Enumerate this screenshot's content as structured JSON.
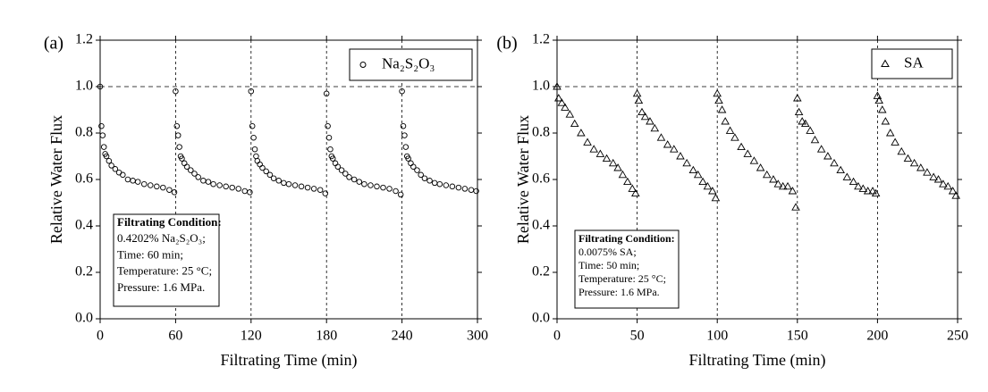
{
  "chart_data": [
    {
      "type": "scatter",
      "panel_label": "(a)",
      "x_label": "Filtrating Time (min)",
      "y_label": "Relative Water Flux",
      "xlim": [
        0,
        300
      ],
      "ylim": [
        0,
        1.2
      ],
      "xticks": [
        0,
        60,
        120,
        180,
        240,
        300
      ],
      "yticks": [
        {
          "value": 0,
          "label": "0.0"
        },
        0.2,
        0.4,
        0.6,
        0.8,
        {
          "value": 1,
          "label": "1.0"
        },
        1.2
      ],
      "vlines": [
        60,
        120,
        180,
        240
      ],
      "hline": 1,
      "legend": "upper right",
      "annotation": [
        "Filtrating Condition:",
        "0.4202% Na₂S₂O₃;",
        "Time: 60 min;",
        "Temperature: 25 °C;",
        "Pressure: 1.6 MPa."
      ],
      "series": [
        {
          "name": "Na₂S₂O₃",
          "color": "#000000",
          "marker": "circle",
          "x": [
            0,
            1,
            2,
            3,
            4,
            5,
            7,
            9,
            12,
            15,
            18,
            22,
            26,
            30,
            35,
            40,
            45,
            50,
            55,
            59,
            60,
            61,
            62,
            63,
            64,
            65,
            67,
            69,
            72,
            75,
            78,
            82,
            86,
            90,
            95,
            100,
            105,
            110,
            115,
            119,
            120,
            121,
            122,
            123,
            124,
            125,
            127,
            129,
            132,
            135,
            138,
            142,
            146,
            150,
            155,
            160,
            165,
            170,
            175,
            179,
            180,
            181,
            182,
            183,
            184,
            185,
            187,
            189,
            192,
            195,
            198,
            202,
            206,
            210,
            215,
            220,
            225,
            230,
            235,
            239,
            240,
            241,
            242,
            243,
            244,
            245,
            247,
            249,
            252,
            255,
            258,
            262,
            266,
            270,
            275,
            280,
            285,
            290,
            295,
            299
          ],
          "values": [
            1.0,
            0.83,
            0.79,
            0.74,
            0.71,
            0.7,
            0.68,
            0.66,
            0.645,
            0.63,
            0.62,
            0.6,
            0.595,
            0.59,
            0.58,
            0.575,
            0.57,
            0.565,
            0.555,
            0.545,
            0.98,
            0.83,
            0.79,
            0.74,
            0.7,
            0.69,
            0.67,
            0.655,
            0.64,
            0.625,
            0.61,
            0.595,
            0.59,
            0.58,
            0.575,
            0.57,
            0.565,
            0.56,
            0.55,
            0.545,
            0.98,
            0.83,
            0.78,
            0.73,
            0.7,
            0.68,
            0.665,
            0.65,
            0.635,
            0.62,
            0.605,
            0.595,
            0.585,
            0.58,
            0.575,
            0.57,
            0.565,
            0.56,
            0.555,
            0.54,
            0.97,
            0.83,
            0.78,
            0.73,
            0.7,
            0.69,
            0.67,
            0.655,
            0.64,
            0.625,
            0.61,
            0.6,
            0.59,
            0.58,
            0.575,
            0.57,
            0.565,
            0.56,
            0.55,
            0.535,
            0.98,
            0.83,
            0.79,
            0.74,
            0.7,
            0.69,
            0.67,
            0.655,
            0.64,
            0.62,
            0.605,
            0.595,
            0.585,
            0.58,
            0.575,
            0.57,
            0.565,
            0.56,
            0.555,
            0.55
          ]
        }
      ]
    },
    {
      "type": "scatter",
      "panel_label": "(b)",
      "x_label": "Filtrating Time (min)",
      "y_label": "Relative Water Flux",
      "xlim": [
        0,
        250
      ],
      "ylim": [
        0,
        1.2
      ],
      "xticks": [
        0,
        50,
        100,
        150,
        200,
        250
      ],
      "yticks": [
        {
          "value": 0,
          "label": "0.0"
        },
        0.2,
        0.4,
        0.6,
        0.8,
        {
          "value": 1,
          "label": "1.0"
        },
        1.2
      ],
      "vlines": [
        50,
        100,
        150,
        200
      ],
      "hline": 1,
      "legend": "upper right",
      "annotation": [
        "Filtrating Condition:",
        "0.0075% SA;",
        "Time: 50 min;",
        "Temperature: 25 °C;",
        "Pressure: 1.6 MPa."
      ],
      "series": [
        {
          "name": "SA",
          "color": "#000000",
          "marker": "triangle",
          "x": [
            0,
            1,
            3,
            5,
            8,
            11,
            15,
            19,
            23,
            27,
            31,
            35,
            38,
            41,
            44,
            47,
            49,
            50,
            51,
            53,
            55,
            58,
            61,
            65,
            69,
            73,
            77,
            81,
            85,
            88,
            91,
            94,
            97,
            99,
            100,
            101,
            103,
            105,
            108,
            111,
            115,
            119,
            123,
            127,
            131,
            135,
            138,
            141,
            144,
            147,
            149,
            150,
            151,
            153,
            155,
            158,
            161,
            165,
            169,
            173,
            177,
            181,
            185,
            188,
            191,
            194,
            197,
            199,
            200,
            201,
            203,
            205,
            208,
            211,
            215,
            219,
            223,
            227,
            231,
            235,
            238,
            241,
            244,
            247,
            249
          ],
          "values": [
            1.0,
            0.95,
            0.93,
            0.91,
            0.88,
            0.84,
            0.8,
            0.76,
            0.73,
            0.71,
            0.69,
            0.67,
            0.65,
            0.62,
            0.59,
            0.56,
            0.54,
            0.97,
            0.94,
            0.89,
            0.87,
            0.85,
            0.82,
            0.78,
            0.75,
            0.73,
            0.7,
            0.67,
            0.64,
            0.62,
            0.59,
            0.57,
            0.55,
            0.52,
            0.97,
            0.94,
            0.9,
            0.85,
            0.81,
            0.78,
            0.74,
            0.71,
            0.68,
            0.65,
            0.62,
            0.6,
            0.58,
            0.57,
            0.57,
            0.55,
            0.48,
            0.95,
            0.89,
            0.85,
            0.84,
            0.81,
            0.77,
            0.73,
            0.7,
            0.67,
            0.64,
            0.61,
            0.59,
            0.57,
            0.56,
            0.55,
            0.55,
            0.54,
            0.96,
            0.94,
            0.9,
            0.85,
            0.8,
            0.76,
            0.72,
            0.69,
            0.67,
            0.65,
            0.63,
            0.61,
            0.6,
            0.58,
            0.57,
            0.55,
            0.53
          ]
        }
      ]
    }
  ]
}
